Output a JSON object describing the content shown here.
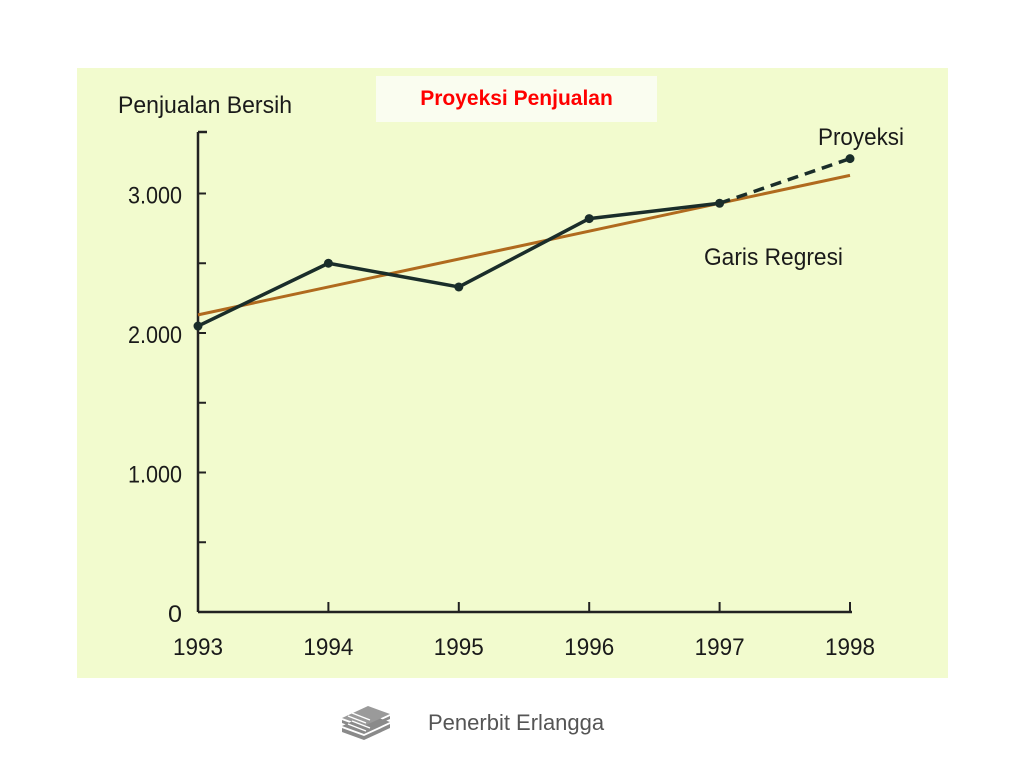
{
  "slide_title": "Proyeksi Penjualan",
  "footer": {
    "publisher": "Penerbit Erlangga",
    "logo_icon": "stacked-books-icon"
  },
  "colors": {
    "panel_background": "#f2fbce",
    "series_line": "#1a2d2a",
    "regression_line": "#b06a1e",
    "title_text": "#ff0000"
  },
  "chart_data": {
    "type": "line",
    "ylabel": "Penjualan Bersih",
    "xlabel": "",
    "categories": [
      "1993",
      "1994",
      "1995",
      "1996",
      "1997",
      "1998"
    ],
    "x_tick_labels": [
      "1993",
      "1994",
      "1995",
      "1996",
      "1997",
      "1998"
    ],
    "y_tick_labels": [
      "0",
      "1.000",
      "2.000",
      "3.000"
    ],
    "y_ticks": [
      0,
      1000,
      2000,
      3000
    ],
    "ylim": [
      0,
      3400
    ],
    "series": [
      {
        "key": "actual",
        "values": [
          2050,
          2500,
          2330,
          2820,
          2930,
          null
        ],
        "style": "solid-with-markers"
      },
      {
        "key": "projection",
        "label": "Proyeksi",
        "values": [
          null,
          null,
          null,
          null,
          2930,
          3250
        ],
        "style": "dashed"
      },
      {
        "key": "regression",
        "label": "Garis Regresi",
        "start": [
          1993,
          2130
        ],
        "end": [
          1998,
          3130
        ],
        "style": "solid"
      }
    ],
    "annotations": [
      "Proyeksi",
      "Garis Regresi"
    ],
    "grid": false,
    "legend": "none"
  }
}
